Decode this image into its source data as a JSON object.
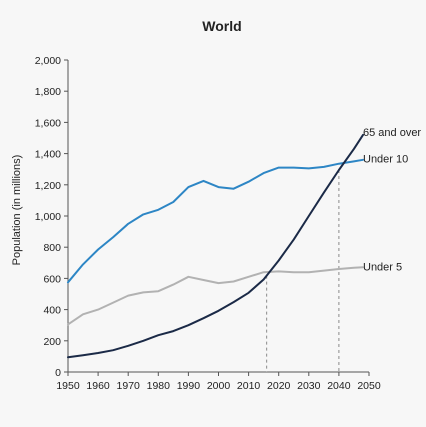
{
  "chart_data": {
    "type": "line",
    "title": "World",
    "xlabel": "",
    "ylabel": "Population (in millions)",
    "xlim": [
      1950,
      2050
    ],
    "ylim": [
      0,
      2000
    ],
    "x_ticks": [
      1950,
      1960,
      1970,
      1980,
      1990,
      2000,
      2010,
      2020,
      2030,
      2040,
      2050
    ],
    "y_ticks": [
      0,
      200,
      400,
      600,
      800,
      1000,
      1200,
      1400,
      1600,
      1800,
      2000
    ],
    "y_tick_labels": [
      "0",
      "200",
      "400",
      "600",
      "800",
      "1,000",
      "1,200",
      "1,400",
      "1,600",
      "1,800",
      "2,000"
    ],
    "grid": false,
    "legend": "direct labels at line ends (right)",
    "reference_lines": [
      {
        "x": 2016,
        "style": "dashed"
      },
      {
        "x": 2040,
        "style": "dashed"
      }
    ],
    "series": [
      {
        "name": "65 and over",
        "color": "#1b2a47",
        "x": [
          1950,
          1955,
          1960,
          1965,
          1970,
          1975,
          1980,
          1985,
          1990,
          1995,
          2000,
          2005,
          2010,
          2015,
          2020,
          2025,
          2030,
          2035,
          2040,
          2045,
          2048
        ],
        "values": [
          95,
          108,
          122,
          140,
          168,
          200,
          236,
          262,
          300,
          345,
          392,
          448,
          508,
          593,
          715,
          850,
          1000,
          1150,
          1295,
          1430,
          1520
        ]
      },
      {
        "name": "Under 10",
        "color": "#2d86c5",
        "x": [
          1950,
          1955,
          1960,
          1965,
          1970,
          1975,
          1980,
          1985,
          1990,
          1995,
          2000,
          2005,
          2010,
          2015,
          2020,
          2025,
          2030,
          2035,
          2040,
          2045,
          2048
        ],
        "values": [
          575,
          690,
          785,
          865,
          950,
          1010,
          1040,
          1090,
          1185,
          1225,
          1185,
          1175,
          1220,
          1275,
          1310,
          1310,
          1305,
          1315,
          1335,
          1350,
          1360
        ]
      },
      {
        "name": "Under 5",
        "color": "#b2b2b2",
        "x": [
          1950,
          1955,
          1960,
          1965,
          1970,
          1975,
          1980,
          1985,
          1990,
          1995,
          2000,
          2005,
          2010,
          2015,
          2020,
          2025,
          2030,
          2035,
          2040,
          2045,
          2048
        ],
        "values": [
          305,
          370,
          400,
          445,
          490,
          510,
          518,
          560,
          610,
          590,
          570,
          580,
          610,
          640,
          645,
          640,
          640,
          650,
          660,
          668,
          672
        ]
      }
    ]
  }
}
